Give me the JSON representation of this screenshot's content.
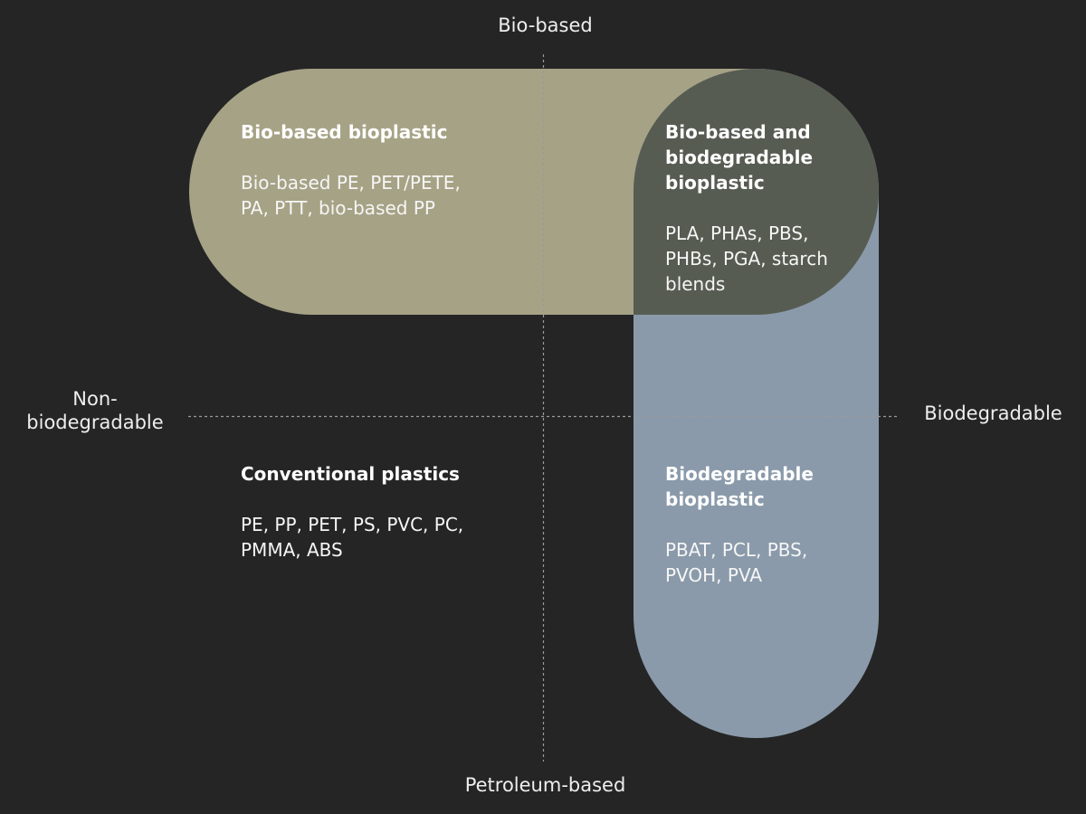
{
  "axes": {
    "top": "Bio-based",
    "bottom": "Petroleum-based",
    "left": "Non-biodegradable",
    "right": "Biodegradable"
  },
  "regions": {
    "bio_based": {
      "title": "Bio-based bioplastic",
      "items": "Bio-based PE, PET/PETE, PA, PTT, bio-based PP"
    },
    "bio_based_biodegradable": {
      "title": "Bio-based and biodegradable bioplastic",
      "items": "PLA, PHAs, PBS, PHBs, PGA, starch blends"
    },
    "conventional": {
      "title": "Conventional plastics",
      "items": "PE, PP, PET, PS, PVC, PC, PMMA, ABS"
    },
    "biodegradable": {
      "title": "Biodegradable bioplastic",
      "items": "PBAT, PCL, PBS, PVOH, PVA"
    }
  },
  "colors": {
    "background": "#252525",
    "bio_based_fill": "#a6a285",
    "biodegradable_fill": "#8a9aaa",
    "overlap_fill": "#575c52",
    "axis_line": "#9a9a9a"
  }
}
